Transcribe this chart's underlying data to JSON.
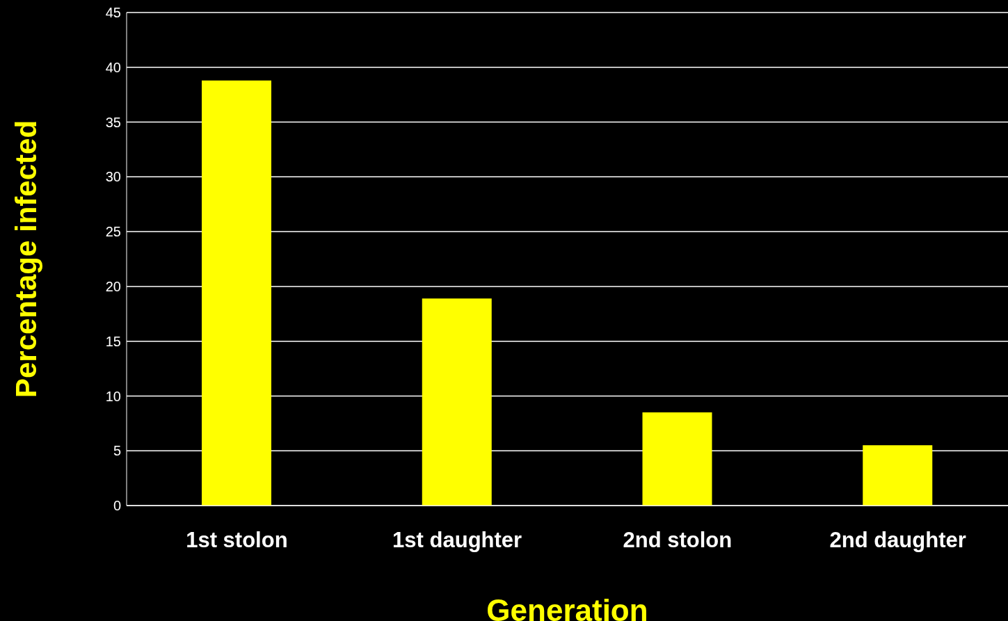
{
  "chart_data": {
    "type": "bar",
    "xlabel": "Generation",
    "ylabel": "Percentage infected",
    "categories": [
      "1st stolon",
      "1st daughter",
      "2nd stolon",
      "2nd daughter"
    ],
    "values": [
      38.8,
      18.9,
      8.5,
      5.5
    ],
    "color": "#ffff00",
    "ylim": [
      0,
      45
    ],
    "yticks": [
      0,
      5,
      10,
      15,
      20,
      25,
      30,
      35,
      40,
      45
    ],
    "grid": "y"
  }
}
